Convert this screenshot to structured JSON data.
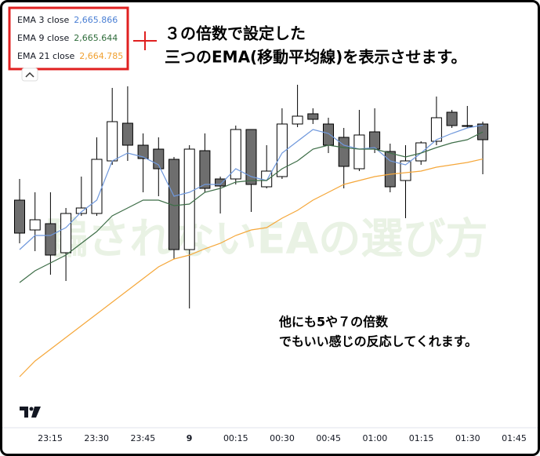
{
  "chart_data": {
    "type": "candlestick",
    "ylim": [
      2656.225,
      2669.85
    ],
    "xticks": [
      "23:15",
      "23:30",
      "23:45",
      "9",
      "00:15",
      "00:30",
      "00:45",
      "01:00",
      "01:15",
      "01:30",
      "01:45"
    ],
    "up_color": "#ffffff",
    "down_color": "#6e6e6e",
    "open": [
      2663.475,
      2662.525,
      2662.725,
      2661.8,
      2663.05,
      2663.05,
      2664.725,
      2665.925,
      2665.225,
      2665.1,
      2664.775,
      2661.9,
      2665.05,
      2664.15,
      2664.15,
      2665.725,
      2663.9,
      2664.225,
      2665.9,
      2666.225,
      2665.9,
      2665.475,
      2664.475,
      2665.65,
      2665.025,
      2664.1,
      2664.725,
      2665.35,
      2666.275,
      2665.85,
      2665.9
    ],
    "high": [
      2664.15,
      2663.725,
      2663.725,
      2663.225,
      2664.225,
      2665.475,
      2667.05,
      2667.1,
      2665.6,
      2665.475,
      2664.85,
      2665.225,
      2665.6,
      2664.225,
      2665.85,
      2665.725,
      2665.225,
      2666.4,
      2667.15,
      2666.4,
      2666.1,
      2665.775,
      2666.35,
      2666.4,
      2665.275,
      2665.225,
      2665.35,
      2666.775,
      2666.35,
      2666.475,
      2665.975
    ],
    "low": [
      2662.1,
      2661.85,
      2661.1,
      2660.9,
      2662.975,
      2662.975,
      2664.6,
      2664.725,
      2663.725,
      2663.6,
      2661.6,
      2660.025,
      2663.725,
      2663.05,
      2663.975,
      2663.1,
      2663.85,
      2664.15,
      2665.8,
      2665.9,
      2664.975,
      2663.85,
      2664.4,
      2664.975,
      2663.725,
      2662.9,
      2664.6,
      2665.225,
      2665.775,
      2665.775,
      2664.3
    ],
    "close": [
      2662.425,
      2662.85,
      2661.725,
      2663.05,
      2663.225,
      2664.775,
      2665.975,
      2665.225,
      2664.8,
      2664.475,
      2661.9,
      2665.1,
      2663.85,
      2663.925,
      2665.725,
      2663.975,
      2664.4,
      2665.9,
      2666.15,
      2666.05,
      2665.225,
      2664.55,
      2665.55,
      2665.1,
      2663.9,
      2664.725,
      2665.3,
      2666.1,
      2665.85,
      2665.85,
      2665.4
    ],
    "series": [
      {
        "name": "EMA 3 close",
        "color": "#6f98dc",
        "label_color": "#4a7fd4",
        "last_value_label": "2,665.866",
        "values": [
          2661.9,
          2662.35,
          2662.35,
          2662.6,
          2663.1,
          2663.475,
          2664.725,
          2664.975,
          2664.85,
          2664.6,
          2663.6,
          2663.725,
          2663.975,
          2663.975,
          2664.475,
          2664.225,
          2664.1,
          2664.975,
          2665.35,
          2665.725,
          2665.6,
          2665.225,
          2665.1,
          2665.15,
          2664.725,
          2664.6,
          2664.975,
          2665.4,
          2665.6,
          2665.775,
          2665.866
        ]
      },
      {
        "name": "EMA 9 close",
        "color": "#3e6e48",
        "label_color": "#2e6b3a",
        "last_value_label": "2,665.644",
        "values": [
          2660.85,
          2661.225,
          2661.475,
          2661.725,
          2662.1,
          2662.475,
          2662.975,
          2663.225,
          2663.475,
          2663.475,
          2663.3,
          2663.35,
          2663.725,
          2663.85,
          2664.05,
          2664.1,
          2664.1,
          2664.475,
          2664.725,
          2665.1,
          2665.225,
          2665.15,
          2665.1,
          2665.1,
          2664.975,
          2664.85,
          2664.975,
          2665.15,
          2665.3,
          2665.4,
          2665.644
        ]
      },
      {
        "name": "EMA 21 close",
        "color": "#f5a73a",
        "label_color": "#f0a030",
        "last_value_label": "2,664.785",
        "values": [
          2657.85,
          2658.35,
          2658.725,
          2659.1,
          2659.475,
          2659.85,
          2660.225,
          2660.6,
          2660.975,
          2661.35,
          2661.6,
          2661.725,
          2661.925,
          2662.1,
          2662.35,
          2662.525,
          2662.6,
          2662.9,
          2663.15,
          2663.475,
          2663.725,
          2663.975,
          2664.1,
          2664.225,
          2664.3,
          2664.35,
          2664.4,
          2664.525,
          2664.6,
          2664.675,
          2664.785
        ]
      }
    ],
    "annotations": [
      "３の倍数で設定した",
      "三つのEMA(移動平均線)を表示させます。",
      "他にも5や７の倍数",
      "でもいい感じの反応してくれます。"
    ],
    "watermark": "騙されないEAの選び方"
  }
}
